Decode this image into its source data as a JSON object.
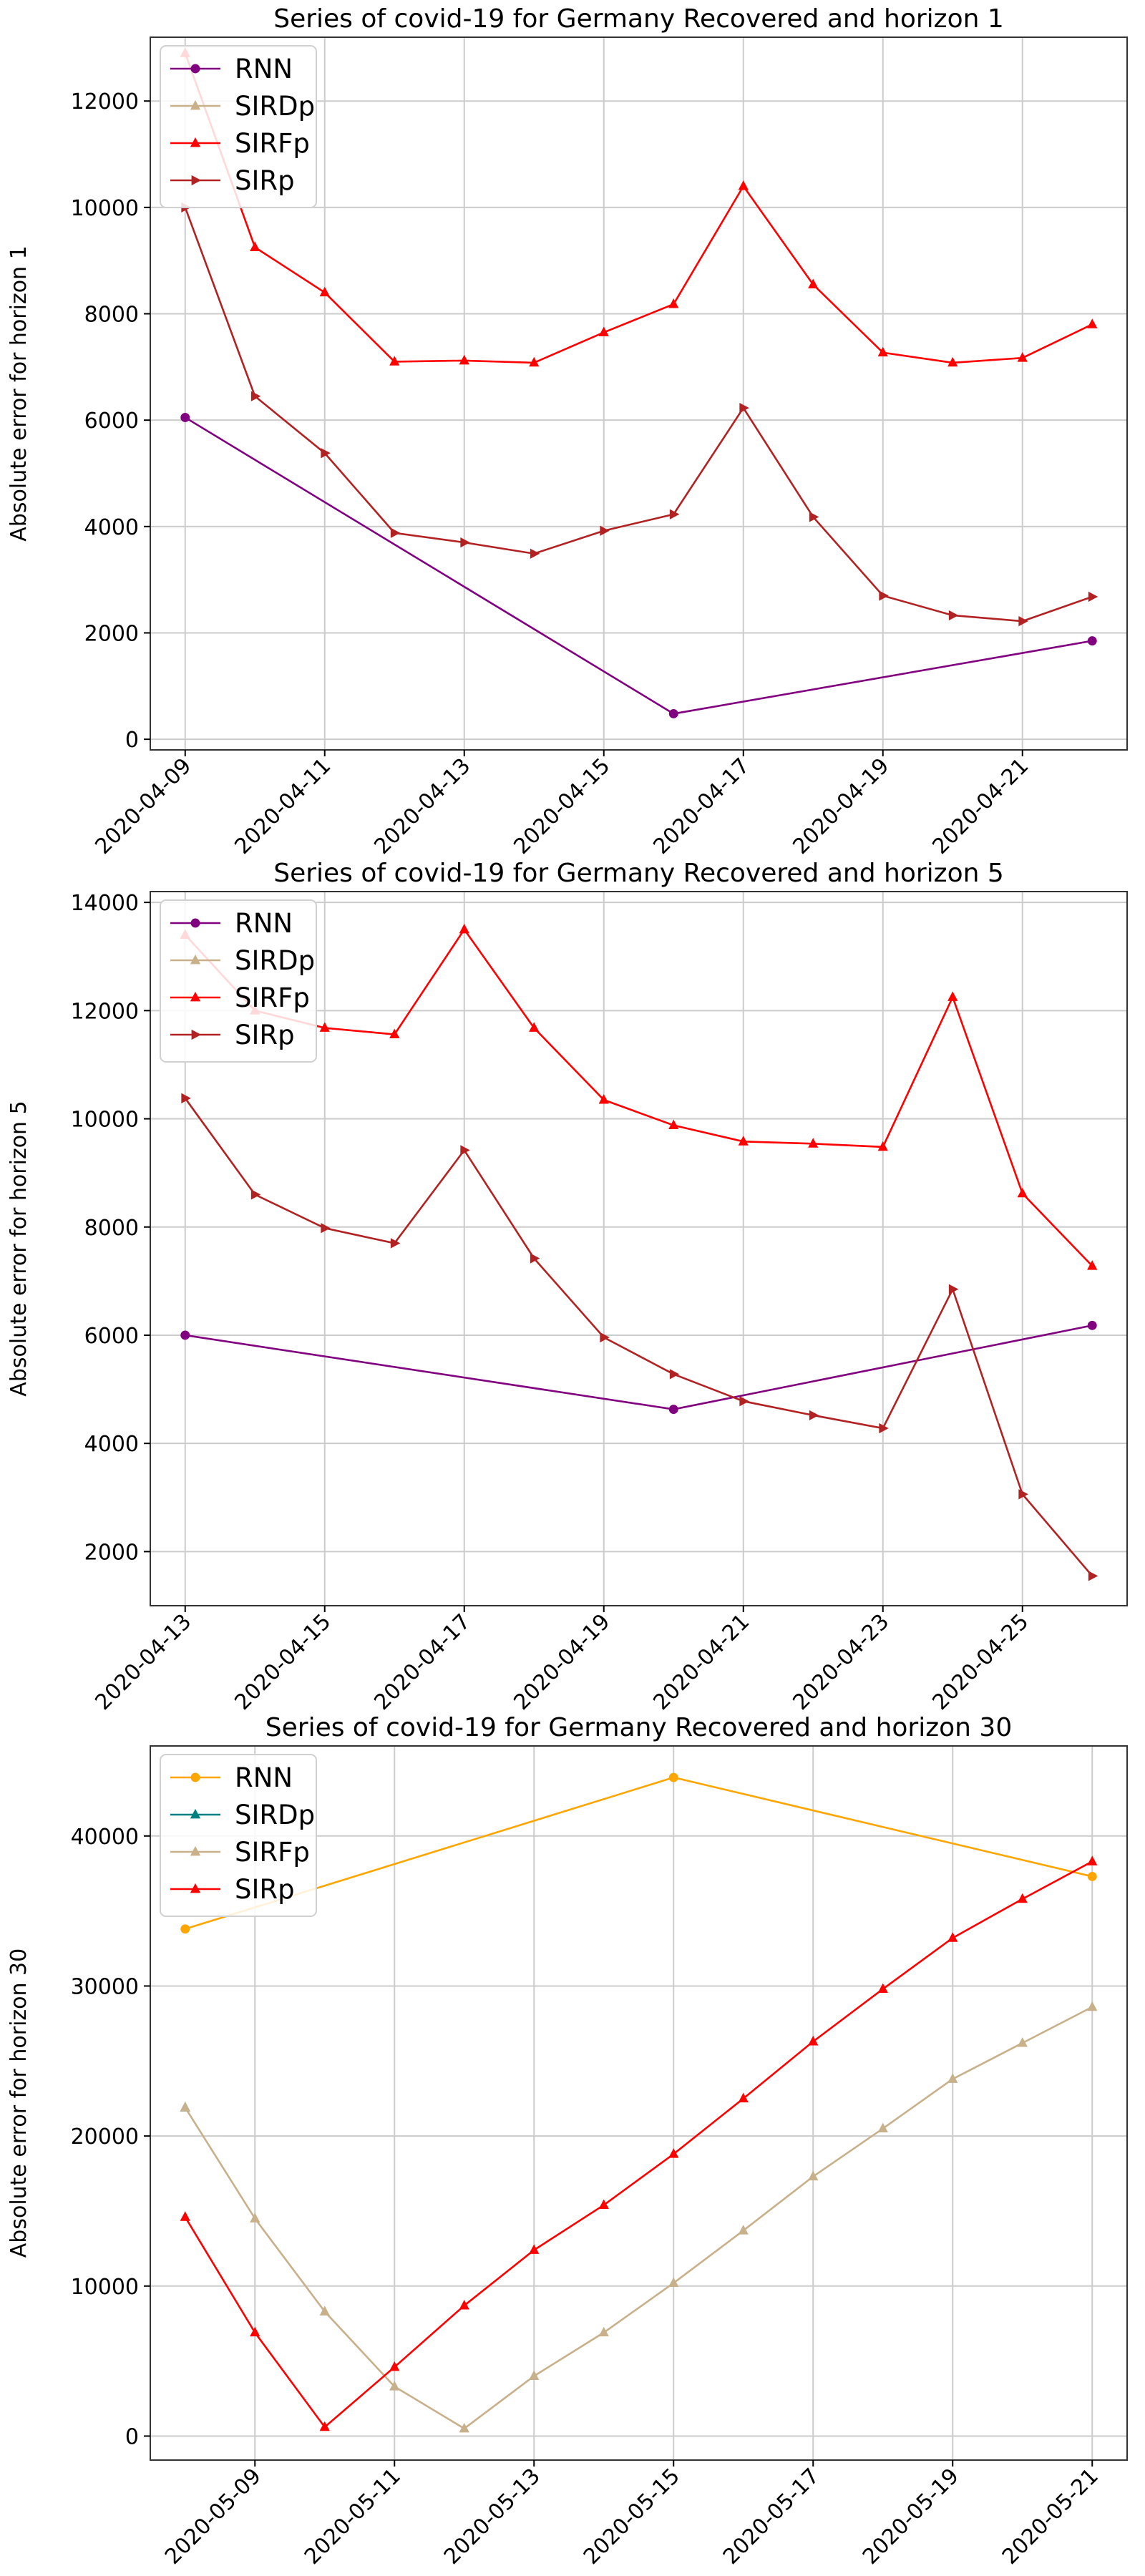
{
  "chart_data": [
    {
      "type": "line",
      "title": "Series of covid-19 for Germany Recovered and horizon 1",
      "xlabel": "",
      "ylabel": "Absolute error for horizon 1",
      "x_axis_type": "date",
      "xlim": [
        "2020-04-08T12:00:00",
        "2020-04-22T12:00:00"
      ],
      "ylim": [
        -200,
        13200
      ],
      "xticks": [
        "2020-04-09",
        "2020-04-11",
        "2020-04-13",
        "2020-04-15",
        "2020-04-17",
        "2020-04-19",
        "2020-04-21"
      ],
      "yticks": [
        0,
        2000,
        4000,
        6000,
        8000,
        10000,
        12000
      ],
      "grid": true,
      "legend_position": "top-left",
      "series": [
        {
          "name": "RNN",
          "color": "#800080",
          "marker": "circle",
          "x": [
            "2020-04-09",
            "2020-04-16",
            "2020-04-22"
          ],
          "values": [
            6050,
            480,
            1850
          ]
        },
        {
          "name": "SIRDp",
          "color": "#c8b08a",
          "marker": "triangle-up",
          "x": [
            "2020-04-09"
          ],
          "values": [
            12900
          ]
        },
        {
          "name": "SIRFp",
          "color": "#ff0000",
          "marker": "triangle-up",
          "x": [
            "2020-04-09",
            "2020-04-10",
            "2020-04-11",
            "2020-04-12",
            "2020-04-13",
            "2020-04-14",
            "2020-04-15",
            "2020-04-16",
            "2020-04-17",
            "2020-04-18",
            "2020-04-19",
            "2020-04-20",
            "2020-04-21",
            "2020-04-22"
          ],
          "values": [
            12900,
            9250,
            8400,
            7100,
            7120,
            7080,
            7650,
            8180,
            10400,
            8550,
            7270,
            7080,
            7170,
            7800
          ]
        },
        {
          "name": "SIRp",
          "color": "#b22222",
          "marker": "triangle-right",
          "x": [
            "2020-04-09",
            "2020-04-10",
            "2020-04-11",
            "2020-04-12",
            "2020-04-13",
            "2020-04-14",
            "2020-04-15",
            "2020-04-16",
            "2020-04-17",
            "2020-04-18",
            "2020-04-19",
            "2020-04-20",
            "2020-04-21",
            "2020-04-22"
          ],
          "values": [
            10000,
            6450,
            5380,
            3880,
            3700,
            3490,
            3920,
            4230,
            6230,
            4180,
            2700,
            2330,
            2220,
            2680
          ]
        }
      ]
    },
    {
      "type": "line",
      "title": "Series of covid-19 for Germany Recovered and horizon 5",
      "xlabel": "",
      "ylabel": "Absolute error for horizon 5",
      "x_axis_type": "date",
      "xlim": [
        "2020-04-12T12:00:00",
        "2020-04-26T12:00:00"
      ],
      "ylim": [
        1000,
        14200
      ],
      "xticks": [
        "2020-04-13",
        "2020-04-15",
        "2020-04-17",
        "2020-04-19",
        "2020-04-21",
        "2020-04-23",
        "2020-04-25"
      ],
      "yticks": [
        2000,
        4000,
        6000,
        8000,
        10000,
        12000,
        14000
      ],
      "grid": true,
      "legend_position": "top-left",
      "series": [
        {
          "name": "RNN",
          "color": "#800080",
          "marker": "circle",
          "x": [
            "2020-04-13",
            "2020-04-20",
            "2020-04-26"
          ],
          "values": [
            6000,
            4630,
            6180
          ]
        },
        {
          "name": "SIRDp",
          "color": "#c8b08a",
          "marker": "triangle-up",
          "x": [
            "2020-04-13"
          ],
          "values": [
            13400
          ]
        },
        {
          "name": "SIRFp",
          "color": "#ff0000",
          "marker": "triangle-up",
          "x": [
            "2020-04-13",
            "2020-04-14",
            "2020-04-15",
            "2020-04-16",
            "2020-04-17",
            "2020-04-18",
            "2020-04-19",
            "2020-04-20",
            "2020-04-21",
            "2020-04-22",
            "2020-04-23",
            "2020-04-24",
            "2020-04-25",
            "2020-04-26"
          ],
          "values": [
            13400,
            12000,
            11680,
            11560,
            13500,
            11680,
            10350,
            9880,
            9580,
            9540,
            9480,
            12250,
            8620,
            7280
          ]
        },
        {
          "name": "SIRp",
          "color": "#b22222",
          "marker": "triangle-right",
          "x": [
            "2020-04-13",
            "2020-04-14",
            "2020-04-15",
            "2020-04-16",
            "2020-04-17",
            "2020-04-18",
            "2020-04-19",
            "2020-04-20",
            "2020-04-21",
            "2020-04-22",
            "2020-04-23",
            "2020-04-24",
            "2020-04-25",
            "2020-04-26"
          ],
          "values": [
            10380,
            8600,
            7980,
            7700,
            9420,
            7420,
            5960,
            5280,
            4780,
            4520,
            4280,
            6850,
            3060,
            1550
          ]
        }
      ]
    },
    {
      "type": "line",
      "title": "Series of covid-19 for Germany Recovered and horizon 30",
      "xlabel": "",
      "ylabel": "Absolute error for horizon 30",
      "x_axis_type": "date",
      "xlim": [
        "2020-05-07T12:00:00",
        "2020-05-21T12:00:00"
      ],
      "ylim": [
        -1600,
        46000
      ],
      "xticks": [
        "2020-05-09",
        "2020-05-11",
        "2020-05-13",
        "2020-05-15",
        "2020-05-17",
        "2020-05-19",
        "2020-05-21"
      ],
      "yticks": [
        0,
        10000,
        20000,
        30000,
        40000
      ],
      "grid": true,
      "legend_position": "top-left",
      "series": [
        {
          "name": "RNN",
          "color": "#ffa500",
          "marker": "circle",
          "x": [
            "2020-05-08",
            "2020-05-15",
            "2020-05-21"
          ],
          "values": [
            33800,
            43900,
            37300
          ]
        },
        {
          "name": "SIRDp",
          "color": "#008080",
          "marker": "triangle-up",
          "x": [
            "2020-05-08"
          ],
          "values": [
            21900
          ]
        },
        {
          "name": "SIRFp",
          "color": "#c8b08a",
          "marker": "triangle-up",
          "x": [
            "2020-05-08",
            "2020-05-09",
            "2020-05-10",
            "2020-05-11",
            "2020-05-12",
            "2020-05-13",
            "2020-05-14",
            "2020-05-15",
            "2020-05-16",
            "2020-05-17",
            "2020-05-18",
            "2020-05-19",
            "2020-05-20",
            "2020-05-21"
          ],
          "values": [
            21900,
            14500,
            8300,
            3300,
            500,
            4000,
            6900,
            10200,
            13700,
            17300,
            20500,
            23800,
            26200,
            28600
          ]
        },
        {
          "name": "SIRp",
          "color": "#ff0000",
          "marker": "triangle-up",
          "x": [
            "2020-05-08",
            "2020-05-09",
            "2020-05-10",
            "2020-05-11",
            "2020-05-12",
            "2020-05-13",
            "2020-05-14",
            "2020-05-15",
            "2020-05-16",
            "2020-05-17",
            "2020-05-18",
            "2020-05-19",
            "2020-05-20",
            "2020-05-21"
          ],
          "values": [
            14600,
            6900,
            600,
            4600,
            8700,
            12400,
            15400,
            18800,
            22500,
            26300,
            29800,
            33200,
            35800,
            38300
          ]
        }
      ]
    }
  ]
}
